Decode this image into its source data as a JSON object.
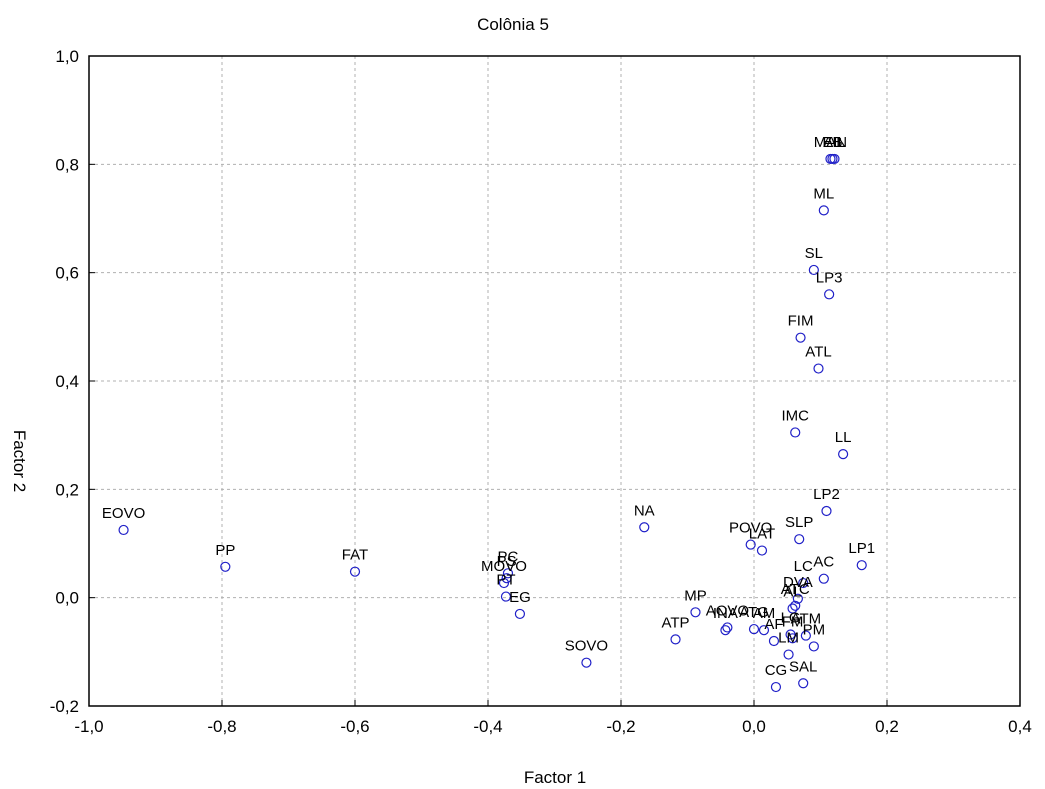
{
  "chart_data": {
    "type": "scatter",
    "title": "Colônia 5",
    "xlabel": "Factor 1",
    "ylabel": "Factor 2",
    "xlim": [
      -1.0,
      0.4
    ],
    "ylim": [
      -0.2,
      1.0
    ],
    "grid": true,
    "x_ticks": [
      -1.0,
      -0.8,
      -0.6,
      -0.4,
      -0.2,
      0.0,
      0.2,
      0.4
    ],
    "y_ticks": [
      -0.2,
      0.0,
      0.2,
      0.4,
      0.6,
      0.8,
      1.0
    ],
    "x_tick_labels": [
      "-1,0",
      "-0,8",
      "-0,6",
      "-0,4",
      "-0,2",
      "0,0",
      "0,2",
      "0,4"
    ],
    "y_tick_labels": [
      "-0,2",
      "0,0",
      "0,2",
      "0,4",
      "0,6",
      "0,8",
      "1,0"
    ],
    "points": [
      {
        "label": "MAN",
        "x": 0.115,
        "y": 0.81
      },
      {
        "label": "EB",
        "x": 0.118,
        "y": 0.81
      },
      {
        "label": "AIL",
        "x": 0.121,
        "y": 0.81
      },
      {
        "label": "ML",
        "x": 0.105,
        "y": 0.715
      },
      {
        "label": "SL",
        "x": 0.09,
        "y": 0.605
      },
      {
        "label": "LP3",
        "x": 0.113,
        "y": 0.56
      },
      {
        "label": "FIM",
        "x": 0.07,
        "y": 0.48
      },
      {
        "label": "ATL",
        "x": 0.097,
        "y": 0.423
      },
      {
        "label": "IMC",
        "x": 0.062,
        "y": 0.305
      },
      {
        "label": "LL",
        "x": 0.134,
        "y": 0.265
      },
      {
        "label": "LP2",
        "x": 0.109,
        "y": 0.16
      },
      {
        "label": "SLP",
        "x": 0.068,
        "y": 0.108
      },
      {
        "label": "POVO",
        "x": -0.005,
        "y": 0.098
      },
      {
        "label": "LAT",
        "x": 0.012,
        "y": 0.087
      },
      {
        "label": "LP1",
        "x": 0.162,
        "y": 0.06
      },
      {
        "label": "LC",
        "x": 0.074,
        "y": 0.027
      },
      {
        "label": "AC",
        "x": 0.105,
        "y": 0.035
      },
      {
        "label": "DVA",
        "x": 0.066,
        "y": -0.002
      },
      {
        "label": "ATC",
        "x": 0.062,
        "y": -0.015
      },
      {
        "label": "AL",
        "x": 0.058,
        "y": -0.02
      },
      {
        "label": "NA",
        "x": -0.165,
        "y": 0.13
      },
      {
        "label": "EOVO",
        "x": -0.948,
        "y": 0.125
      },
      {
        "label": "PP",
        "x": -0.795,
        "y": 0.057
      },
      {
        "label": "FAT",
        "x": -0.6,
        "y": 0.048
      },
      {
        "label": "PC",
        "x": -0.37,
        "y": 0.045
      },
      {
        "label": "PS",
        "x": -0.372,
        "y": 0.036
      },
      {
        "label": "MOVO",
        "x": -0.376,
        "y": 0.027
      },
      {
        "label": "PT",
        "x": -0.373,
        "y": 0.002
      },
      {
        "label": "EG",
        "x": -0.352,
        "y": -0.03
      },
      {
        "label": "MP",
        "x": -0.088,
        "y": -0.027
      },
      {
        "label": "AOVO",
        "x": -0.04,
        "y": -0.055
      },
      {
        "label": "INA",
        "x": -0.043,
        "y": -0.06
      },
      {
        "label": "ATG",
        "x": 0.0,
        "y": -0.058
      },
      {
        "label": "AM",
        "x": 0.015,
        "y": -0.06
      },
      {
        "label": "AF",
        "x": 0.03,
        "y": -0.08
      },
      {
        "label": "LG",
        "x": 0.055,
        "y": -0.068
      },
      {
        "label": "FM",
        "x": 0.058,
        "y": -0.075
      },
      {
        "label": "ATM",
        "x": 0.078,
        "y": -0.07
      },
      {
        "label": "PM",
        "x": 0.09,
        "y": -0.09
      },
      {
        "label": "LM",
        "x": 0.052,
        "y": -0.105
      },
      {
        "label": "ATP",
        "x": -0.118,
        "y": -0.077
      },
      {
        "label": "SOVO",
        "x": -0.252,
        "y": -0.12
      },
      {
        "label": "SAL",
        "x": 0.074,
        "y": -0.158
      },
      {
        "label": "CG",
        "x": 0.033,
        "y": -0.165
      }
    ]
  }
}
